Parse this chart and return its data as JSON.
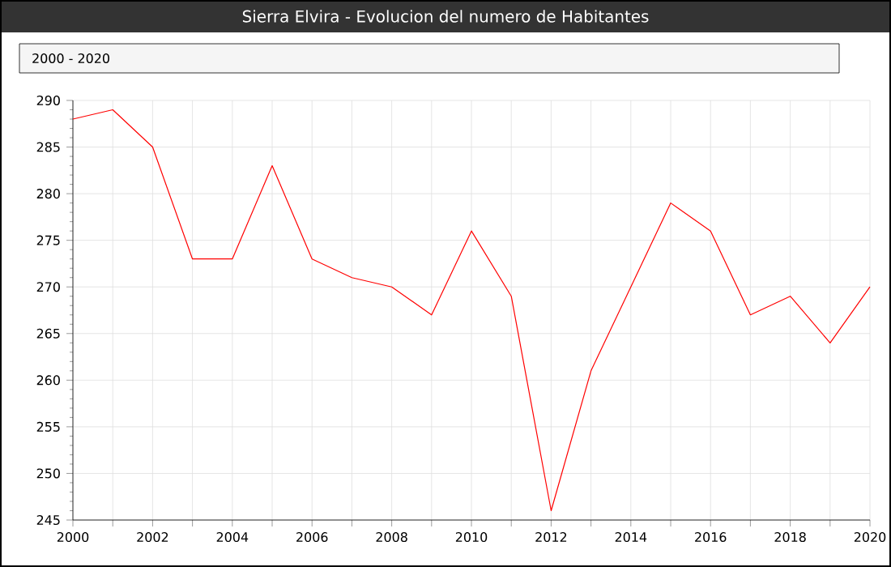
{
  "chart_data": {
    "type": "line",
    "title": "Sierra Elvira - Evolucion del numero de Habitantes",
    "annotations": [
      "2000 - 2020"
    ],
    "x": [
      2000,
      2001,
      2002,
      2003,
      2004,
      2005,
      2006,
      2007,
      2008,
      2009,
      2010,
      2011,
      2012,
      2013,
      2014,
      2015,
      2016,
      2017,
      2018,
      2019,
      2020
    ],
    "series": [
      {
        "color": "#ff0000",
        "values": [
          288,
          289,
          285,
          273,
          273,
          283,
          273,
          271,
          270,
          267,
          276,
          269,
          246,
          261,
          270,
          279,
          276,
          267,
          269,
          264,
          270
        ]
      }
    ],
    "xlim": [
      2000,
      2020
    ],
    "ylim": [
      245,
      290
    ],
    "xticks": [
      2000,
      {
        "value": 2001,
        "label": null
      },
      2002,
      {
        "value": 2003,
        "label": null
      },
      2004,
      {
        "value": 2005,
        "label": null
      },
      2006,
      {
        "value": 2007,
        "label": null
      },
      2008,
      {
        "value": 2009,
        "label": null
      },
      2010,
      {
        "value": 2011,
        "label": null
      },
      2012,
      {
        "value": 2013,
        "label": null
      },
      2014,
      {
        "value": 2015,
        "label": null
      },
      2016,
      {
        "value": 2017,
        "label": null
      },
      2018,
      {
        "value": 2019,
        "label": null
      },
      2020
    ],
    "yticks": [
      245,
      250,
      255,
      260,
      265,
      270,
      275,
      280,
      285,
      290
    ],
    "grid": true,
    "marker": "none",
    "line_style": "solid"
  }
}
